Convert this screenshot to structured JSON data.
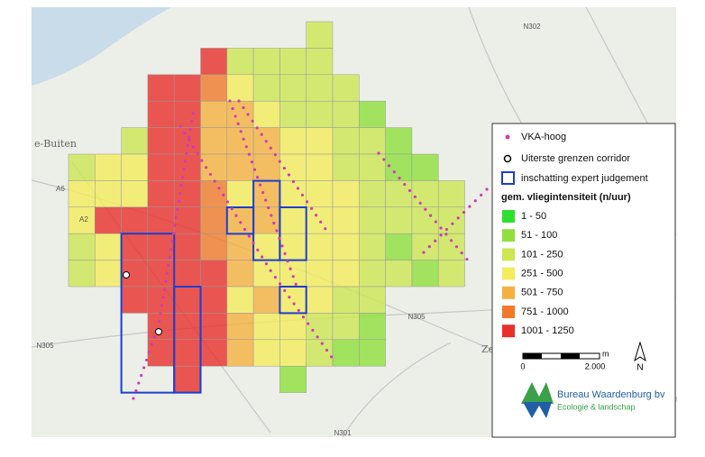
{
  "map_labels": [
    "N302",
    "e-Buiten",
    "A6",
    "A2",
    "N305",
    "N305",
    "Zeewo",
    "N301"
  ],
  "legend": {
    "symbols": [
      "VKA-hoog",
      "Uiterste grenzen corridor",
      "inschatting expert judgement"
    ],
    "title": "gem. vliegintensiteit (n/uur)",
    "classes": [
      {
        "label": "1 - 50",
        "color": "#2ee02e"
      },
      {
        "label": "51 - 100",
        "color": "#8fe03c"
      },
      {
        "label": "101 - 250",
        "color": "#cde652"
      },
      {
        "label": "251 - 500",
        "color": "#f4ec5c"
      },
      {
        "label": "501 - 750",
        "color": "#f5b040"
      },
      {
        "label": "751 - 1000",
        "color": "#f07a2a"
      },
      {
        "label": "1001 - 1250",
        "color": "#e8302a"
      }
    ]
  },
  "scale": {
    "start": "0",
    "end": "2.000",
    "unit": "m"
  },
  "north": "N",
  "logo": {
    "name": "Bureau Waardenburg bv",
    "tagline": "Ecologie & landschap"
  }
}
